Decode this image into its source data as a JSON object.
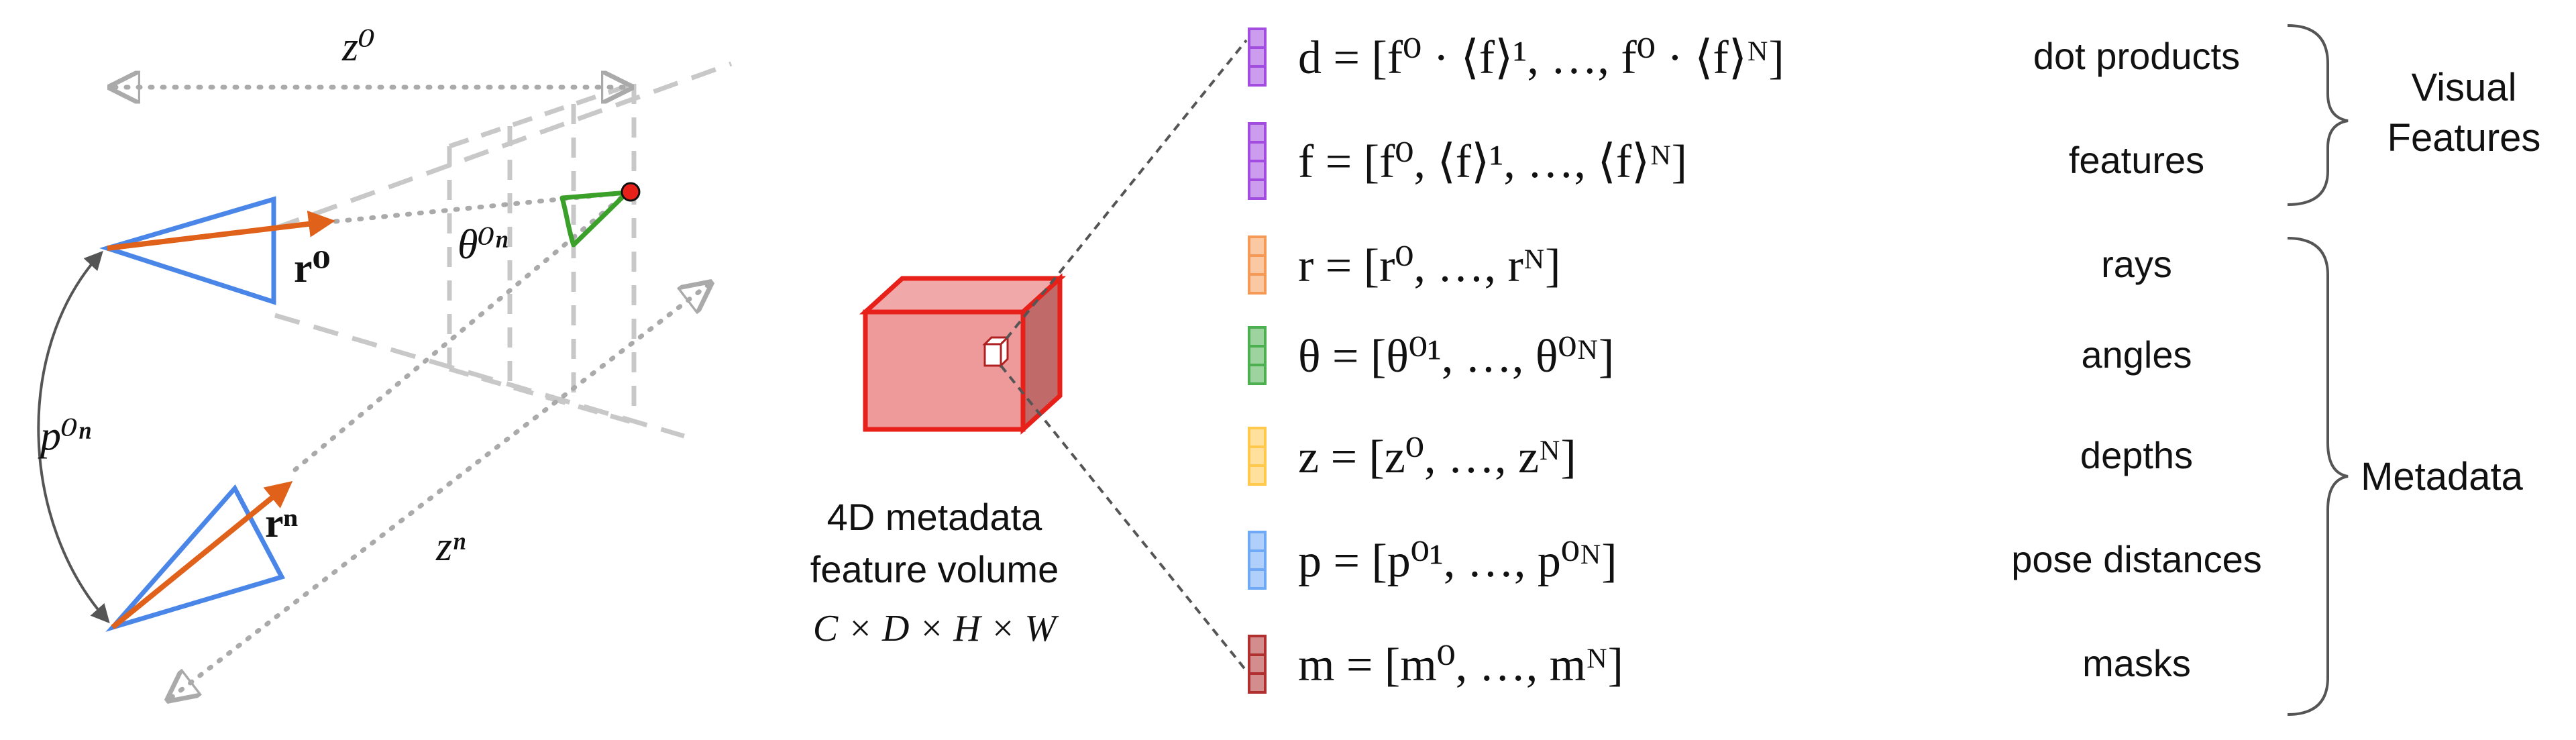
{
  "left_diagram": {
    "label_z0": "z⁰",
    "label_zn": "zⁿ",
    "label_r0": "r⁰",
    "label_rn": "rⁿ",
    "label_theta": "θ⁰ⁿ",
    "label_p": "p⁰ⁿ"
  },
  "volume": {
    "title_line1": "4D metadata",
    "title_line2": "feature volume",
    "dims": "C × D × H × W"
  },
  "rows": [
    {
      "symbol": "d",
      "formula": "d = [f⁰ · ⟨f⟩¹, …, f⁰ · ⟨f⟩ᴺ]",
      "description": "dot products",
      "color": "#a34de0"
    },
    {
      "symbol": "f",
      "formula": "f = [f⁰, ⟨f⟩¹, …, ⟨f⟩ᴺ]",
      "description": "features",
      "color": "#a34de0"
    },
    {
      "symbol": "r",
      "formula": "r = [r⁰, …, rᴺ]",
      "description": "rays",
      "color": "#f59a56"
    },
    {
      "symbol": "θ",
      "formula": "θ = [θ⁰¹, …, θ⁰ᴺ]",
      "description": "angles",
      "color": "#4caf50"
    },
    {
      "symbol": "z",
      "formula": "z = [z⁰, …, zᴺ]",
      "description": "depths",
      "color": "#ffc94d"
    },
    {
      "symbol": "p",
      "formula": "p = [p⁰¹, …, p⁰ᴺ]",
      "description": "pose distances",
      "color": "#6fa8f5"
    },
    {
      "symbol": "m",
      "formula": "m = [m⁰, …, mᴺ]",
      "description": "masks",
      "color": "#b03030"
    }
  ],
  "groups": {
    "visual_line1": "Visual",
    "visual_line2": "Features",
    "metadata": "Metadata"
  },
  "colors": {
    "camera": "#4a86e8",
    "ray": "#e0611a",
    "angle": "#3aa02a",
    "point": "#e8201a",
    "volume_fill": "#ee9a9a",
    "volume_stroke": "#e8201a",
    "guide": "#c8c8c8"
  }
}
